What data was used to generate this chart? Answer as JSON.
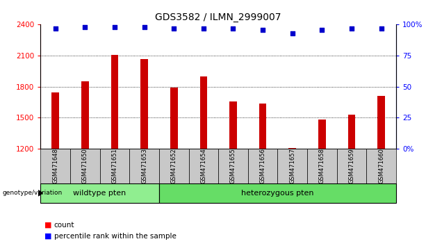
{
  "title": "GDS3582 / ILMN_2999007",
  "categories": [
    "GSM471648",
    "GSM471650",
    "GSM471651",
    "GSM471653",
    "GSM471652",
    "GSM471654",
    "GSM471655",
    "GSM471656",
    "GSM471657",
    "GSM471658",
    "GSM471659",
    "GSM471660"
  ],
  "bar_values": [
    1745,
    1855,
    2110,
    2070,
    1795,
    1900,
    1660,
    1640,
    1205,
    1480,
    1530,
    1710
  ],
  "percentile_values": [
    97,
    98,
    98,
    98,
    97,
    97,
    97,
    96,
    93,
    96,
    97,
    97
  ],
  "bar_color": "#cc0000",
  "dot_color": "#0000cc",
  "ylim_left": [
    1200,
    2400
  ],
  "ylim_right": [
    0,
    100
  ],
  "yticks_left": [
    1200,
    1500,
    1800,
    2100,
    2400
  ],
  "yticks_right": [
    0,
    25,
    50,
    75,
    100
  ],
  "wildtype_count": 4,
  "heterozygous_count": 8,
  "wildtype_label": "wildtype pten",
  "heterozygous_label": "heterozygous pten",
  "genotype_label": "genotype/variation",
  "legend_count": "count",
  "legend_percentile": "percentile rank within the sample",
  "wildtype_fill": "#90ee90",
  "heterozygous_fill": "#66dd66",
  "xticklabel_bg": "#c8c8c8",
  "title_fontsize": 10,
  "tick_fontsize": 7.5,
  "bar_width": 0.25
}
